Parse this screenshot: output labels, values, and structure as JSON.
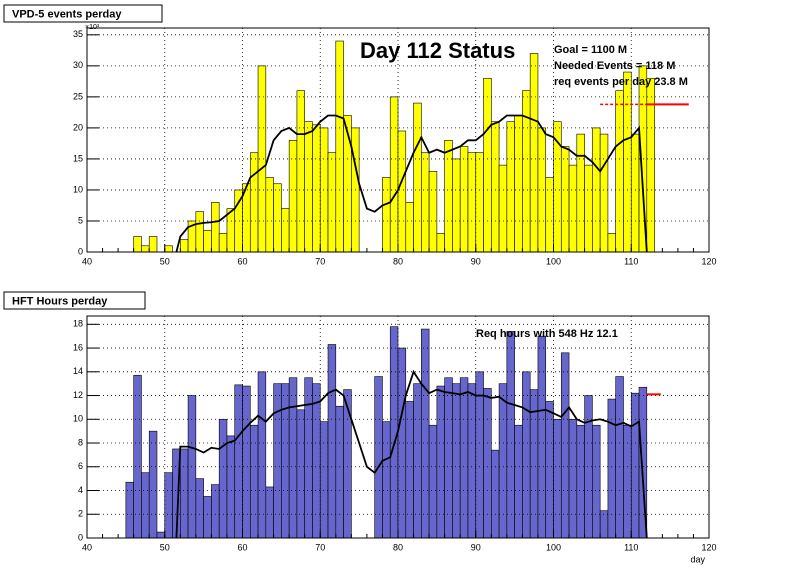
{
  "chart_data": [
    {
      "type": "histogram",
      "title": "VPD-5 events perday",
      "y_multiplier": "×10³",
      "bins": [
        45,
        46,
        47,
        48,
        49,
        50,
        51,
        52,
        53,
        54,
        55,
        56,
        57,
        58,
        59,
        60,
        61,
        62,
        63,
        64,
        65,
        66,
        67,
        68,
        69,
        70,
        71,
        72,
        73,
        74,
        75,
        76,
        77,
        78,
        79,
        80,
        81,
        82,
        83,
        84,
        85,
        86,
        87,
        88,
        89,
        90,
        91,
        92,
        93,
        94,
        95,
        96,
        97,
        98,
        99,
        100,
        101,
        102,
        103,
        104,
        105,
        106,
        107,
        108,
        109,
        110,
        111,
        112,
        113
      ],
      "values": [
        0,
        2.5,
        1,
        2.5,
        0,
        1,
        0,
        2,
        5,
        6.5,
        3.5,
        8,
        3,
        7,
        10,
        11,
        16,
        30,
        12,
        11,
        7,
        18,
        26,
        21,
        20.5,
        20,
        16,
        34,
        22,
        20,
        0,
        0,
        0,
        12,
        25,
        19.5,
        8,
        24,
        16,
        13,
        3,
        18,
        15,
        17,
        16,
        16,
        28,
        21,
        14,
        21,
        22,
        26,
        32,
        20,
        12,
        21,
        17,
        14,
        19,
        14,
        20,
        19,
        3,
        26,
        29,
        19,
        30,
        28
      ],
      "color": "#ffff00",
      "smooth": {
        "color": "#000000",
        "x": [
          51.5,
          52,
          53,
          54,
          55,
          56,
          57,
          58,
          59,
          60,
          61,
          62,
          63,
          64,
          65,
          66,
          67,
          68,
          69,
          70,
          71,
          72,
          73,
          74,
          75,
          76,
          77,
          78,
          79,
          80,
          81,
          82,
          83,
          84,
          85,
          86,
          87,
          88,
          89,
          90,
          91,
          92,
          93,
          94,
          95,
          96,
          97,
          98,
          99,
          100,
          101,
          102,
          103,
          104,
          105,
          106,
          107,
          108,
          109,
          110,
          111,
          112
        ],
        "values": [
          0,
          2.5,
          4,
          4.5,
          4.7,
          4.8,
          5,
          6,
          7,
          9,
          12,
          13,
          14,
          18,
          19.5,
          20,
          19,
          19,
          19.5,
          21,
          22,
          22,
          21.5,
          17,
          11,
          7,
          6.5,
          7.5,
          8,
          10,
          13,
          16,
          18.5,
          16,
          16.5,
          16,
          16.5,
          17,
          18,
          18,
          19,
          20.5,
          21,
          22,
          22,
          22,
          21.5,
          21,
          19,
          18.5,
          17,
          16.5,
          15.5,
          15.5,
          14.5,
          13,
          15,
          17,
          18,
          18.5,
          20,
          0
        ]
      },
      "reference": {
        "color": "#ff0000",
        "value": 23.8,
        "dashed_x": [
          106,
          112
        ],
        "solid_x": [
          112,
          117.4
        ]
      },
      "annotations": [
        "Day 112 Status",
        "Goal =  1100 M",
        "Needed Events =   118 M",
        "req events per day 23.8 M"
      ],
      "xlim": [
        40,
        120
      ],
      "xticks": [
        40,
        50,
        60,
        70,
        80,
        90,
        100,
        110,
        120
      ],
      "ylim": [
        0,
        36.1
      ],
      "yticks": [
        0,
        5,
        10,
        15,
        20,
        25,
        30,
        35
      ],
      "grid": true
    },
    {
      "type": "histogram",
      "title": "HFT Hours perday",
      "x_label": "day",
      "bins": [
        45,
        46,
        47,
        48,
        49,
        50,
        51,
        52,
        53,
        54,
        55,
        56,
        57,
        58,
        59,
        60,
        61,
        62,
        63,
        64,
        65,
        66,
        67,
        68,
        69,
        70,
        71,
        72,
        73,
        74,
        75,
        76,
        77,
        78,
        79,
        80,
        81,
        82,
        83,
        84,
        85,
        86,
        87,
        88,
        89,
        90,
        91,
        92,
        93,
        94,
        95,
        96,
        97,
        98,
        99,
        100,
        101,
        102,
        103,
        104,
        105,
        106,
        107,
        108,
        109,
        110,
        111,
        112,
        113
      ],
      "values": [
        4.7,
        13.7,
        5.5,
        9,
        0.5,
        5.5,
        7.5,
        7.5,
        12,
        5,
        3.5,
        4.5,
        10,
        8.6,
        12.9,
        12.8,
        9.5,
        14,
        4.3,
        13,
        13,
        13.5,
        10.8,
        13.5,
        13,
        9.8,
        16.3,
        11.1,
        12.5,
        0,
        0,
        0,
        13.6,
        9.8,
        17.8,
        16,
        11.5,
        13,
        17.6,
        9.5,
        12.8,
        13.5,
        13,
        13.5,
        13,
        14,
        12.6,
        7.4,
        13,
        17.4,
        9.5,
        14,
        12.5,
        17,
        11.5,
        10,
        15.6,
        10,
        9.5,
        12,
        9.5,
        2.3,
        11.7,
        13.6,
        9.5,
        12.2,
        12.7,
        0
      ],
      "color": "#6666cc",
      "smooth": {
        "color": "#000000",
        "x": [
          51.5,
          52,
          53,
          54,
          55,
          56,
          57,
          58,
          59,
          60,
          61,
          62,
          63,
          64,
          65,
          66,
          67,
          68,
          69,
          70,
          71,
          72,
          73,
          74,
          75,
          76,
          77,
          78,
          79,
          80,
          81,
          82,
          83,
          84,
          85,
          86,
          87,
          88,
          89,
          90,
          91,
          92,
          93,
          94,
          95,
          96,
          97,
          98,
          99,
          100,
          101,
          102,
          103,
          104,
          105,
          106,
          107,
          108,
          109,
          110,
          111,
          112
        ],
        "values": [
          0,
          7.7,
          7.7,
          7.5,
          7.2,
          7.6,
          7.5,
          8,
          8.2,
          9,
          9.7,
          10.3,
          9.8,
          10.5,
          10.8,
          11,
          11.1,
          11.2,
          11.3,
          11.5,
          12.2,
          12.5,
          12,
          10,
          8,
          6,
          5.5,
          6.5,
          6.8,
          9,
          12,
          14,
          13,
          12.2,
          12.5,
          12.3,
          12.2,
          12.1,
          12.3,
          12,
          12,
          11.8,
          11.9,
          11.4,
          11.2,
          11,
          10.6,
          10.7,
          10.8,
          10.5,
          10.2,
          11,
          10,
          9.7,
          9.9,
          10,
          9.8,
          9.5,
          9.7,
          9.4,
          9.8,
          0
        ]
      },
      "reference": {
        "color": "#ff0000",
        "value": 12.1,
        "solid_x": [
          112,
          113.8
        ]
      },
      "annotations": [
        "Req hours with  548 Hz 12.1"
      ],
      "xlim": [
        40,
        120
      ],
      "xticks": [
        40,
        50,
        60,
        70,
        80,
        90,
        100,
        110,
        120
      ],
      "ylim": [
        0,
        18.7
      ],
      "yticks": [
        0,
        2,
        4,
        6,
        8,
        10,
        12,
        14,
        16,
        18
      ],
      "grid": true
    }
  ]
}
